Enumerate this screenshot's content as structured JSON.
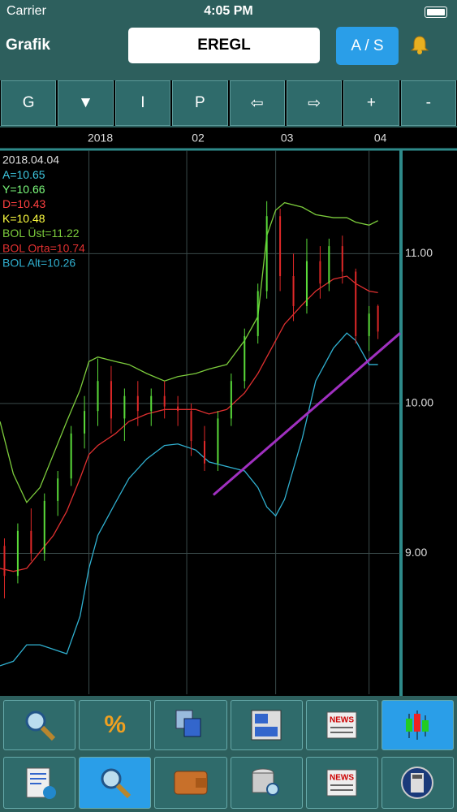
{
  "status": {
    "carrier": "Carrier",
    "time": "4:05 PM"
  },
  "header": {
    "title": "Grafik",
    "symbol": "EREGL",
    "button": "A / S"
  },
  "toolbar": [
    "G",
    "▼",
    "I",
    "P",
    "⇦",
    "⇨",
    "+",
    "-"
  ],
  "bottom": {
    "percent": "%",
    "news": "NEWS"
  },
  "chart_data": {
    "type": "candlestick",
    "info": [
      {
        "text": "2018.04.04",
        "color": "#e0e0e0"
      },
      {
        "text": "A=10.65",
        "color": "#3ec8e0"
      },
      {
        "text": "Y=10.66",
        "color": "#7cfc7c"
      },
      {
        "text": "D=10.43",
        "color": "#ff4040"
      },
      {
        "text": "K=10.48",
        "color": "#ffff40"
      },
      {
        "text": "BOL Üst=11.22",
        "color": "#7ccc3c"
      },
      {
        "text": "BOL Orta=10.74",
        "color": "#e03030"
      },
      {
        "text": "BOL Alt=10.26",
        "color": "#30b0d0"
      }
    ],
    "xlim": [
      0,
      90
    ],
    "ylim": [
      8.06,
      11.69
    ],
    "xticks": [
      {
        "value": 20,
        "label": "2018"
      },
      {
        "value": 42,
        "label": "02"
      },
      {
        "value": 62,
        "label": "03"
      },
      {
        "value": 83,
        "label": "04"
      }
    ],
    "yticks": [
      {
        "value": 9,
        "label": "9.00"
      },
      {
        "value": 10,
        "label": "10.00"
      },
      {
        "value": 11,
        "label": "11.00"
      }
    ],
    "grid": true,
    "up_color": "#5adc3a",
    "down_color": "#e02828",
    "candles": {
      "x": [
        1,
        4,
        7,
        10,
        13,
        16,
        19,
        22,
        25,
        28,
        31,
        34,
        37,
        40,
        43,
        46,
        49,
        52,
        55,
        58,
        60,
        63,
        66,
        69,
        72,
        74,
        77,
        80,
        83,
        85
      ],
      "open": [
        9.05,
        8.85,
        9.15,
        9.0,
        9.35,
        9.5,
        9.8,
        9.95,
        10.15,
        9.9,
        10.05,
        9.95,
        10.05,
        9.98,
        9.95,
        9.75,
        9.6,
        9.9,
        10.15,
        10.45,
        10.75,
        11.25,
        10.85,
        10.65,
        10.95,
        10.8,
        11.05,
        10.88,
        10.45,
        10.65
      ],
      "high": [
        9.1,
        9.2,
        9.3,
        9.4,
        9.55,
        9.85,
        10.05,
        10.3,
        10.25,
        10.1,
        10.15,
        10.1,
        10.15,
        10.05,
        10.0,
        9.85,
        9.95,
        10.2,
        10.5,
        10.8,
        11.35,
        11.3,
        11.0,
        11.1,
        11.05,
        11.1,
        11.12,
        10.9,
        10.65,
        10.66
      ],
      "low": [
        8.7,
        8.8,
        8.95,
        8.95,
        9.25,
        9.45,
        9.7,
        9.85,
        9.8,
        9.75,
        9.85,
        9.85,
        9.9,
        9.85,
        9.65,
        9.55,
        9.55,
        9.85,
        10.1,
        10.4,
        10.7,
        10.75,
        10.55,
        10.6,
        10.7,
        10.75,
        10.8,
        10.4,
        10.35,
        10.43
      ],
      "close": [
        8.85,
        9.15,
        9.0,
        9.35,
        9.5,
        9.8,
        9.95,
        10.15,
        9.9,
        10.05,
        9.95,
        10.05,
        9.98,
        9.95,
        9.75,
        9.6,
        9.9,
        10.15,
        10.45,
        10.75,
        11.25,
        10.85,
        10.65,
        10.95,
        10.8,
        11.05,
        10.88,
        10.45,
        10.6,
        10.48
      ]
    },
    "x": [
      0,
      3,
      6,
      9,
      12,
      15,
      18,
      20,
      22,
      26,
      29,
      33,
      37,
      40,
      44,
      47,
      51,
      55,
      58,
      60,
      62,
      64,
      68,
      71,
      75,
      78,
      80,
      83,
      85
    ],
    "series": [
      {
        "color": "#7ccc3c",
        "values": [
          9.88,
          9.53,
          9.34,
          9.44,
          9.66,
          9.88,
          10.09,
          10.28,
          10.31,
          10.28,
          10.26,
          10.2,
          10.15,
          10.18,
          10.2,
          10.23,
          10.26,
          10.42,
          10.58,
          11.12,
          11.29,
          11.34,
          11.31,
          11.26,
          11.24,
          11.24,
          11.21,
          11.19,
          11.22
        ]
      },
      {
        "color": "#e03030",
        "values": [
          8.9,
          8.88,
          8.9,
          9.01,
          9.12,
          9.28,
          9.5,
          9.66,
          9.72,
          9.8,
          9.88,
          9.93,
          9.96,
          9.96,
          9.96,
          9.93,
          9.96,
          10.07,
          10.2,
          10.31,
          10.42,
          10.53,
          10.66,
          10.75,
          10.83,
          10.85,
          10.8,
          10.75,
          10.74
        ]
      },
      {
        "color": "#30b0d0",
        "values": [
          8.25,
          8.28,
          8.39,
          8.39,
          8.36,
          8.33,
          8.58,
          8.9,
          9.12,
          9.34,
          9.5,
          9.63,
          9.72,
          9.73,
          9.69,
          9.61,
          9.58,
          9.55,
          9.44,
          9.31,
          9.25,
          9.36,
          9.77,
          10.15,
          10.37,
          10.47,
          10.42,
          10.26,
          10.26
        ]
      }
    ],
    "trendline": {
      "x": [
        48,
        90
      ],
      "values": [
        9.39,
        10.47
      ],
      "color": "#a030c0"
    }
  }
}
